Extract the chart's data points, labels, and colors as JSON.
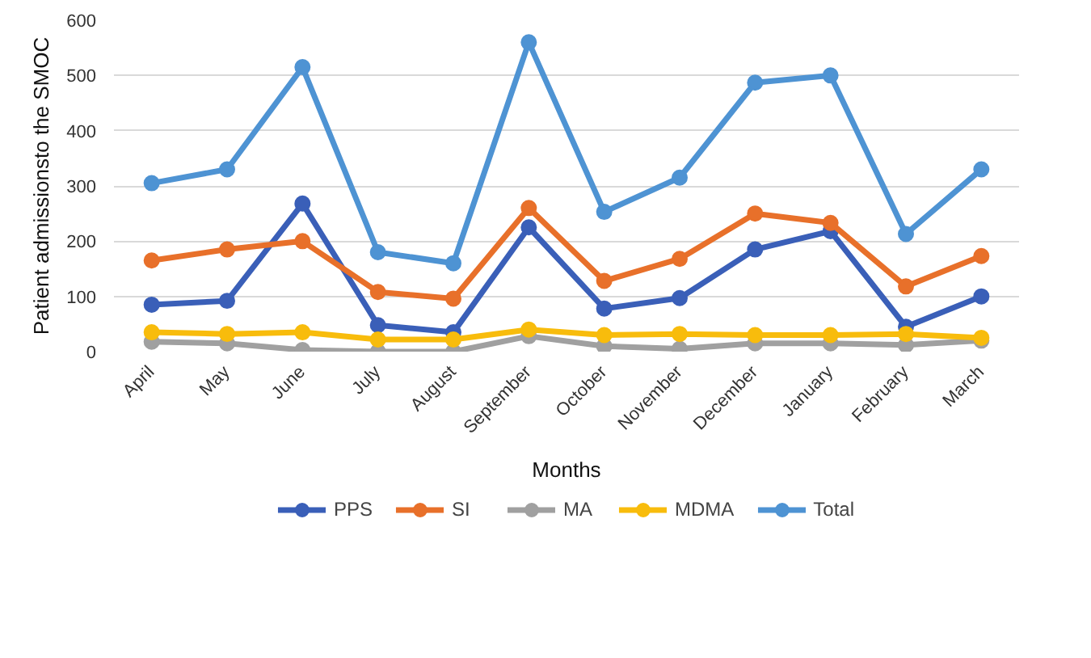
{
  "chart_data": {
    "type": "line",
    "xlabel": "Months",
    "ylabel": "Patient admissionsto the SMOC",
    "categories": [
      "April",
      "May",
      "June",
      "July",
      "August",
      "September",
      "October",
      "November",
      "December",
      "January",
      "February",
      "March"
    ],
    "series": [
      {
        "name": "PPS",
        "color": "#3a5fb8",
        "values": [
          85,
          92,
          268,
          48,
          35,
          225,
          78,
          97,
          185,
          218,
          45,
          100
        ]
      },
      {
        "name": "SI",
        "color": "#e8702a",
        "values": [
          165,
          185,
          200,
          108,
          96,
          260,
          128,
          168,
          250,
          233,
          118,
          173
        ]
      },
      {
        "name": "MA",
        "color": "#a0a0a0",
        "values": [
          18,
          15,
          3,
          0,
          0,
          28,
          10,
          5,
          15,
          15,
          12,
          20
        ]
      },
      {
        "name": "MDMA",
        "color": "#f8bc0c",
        "values": [
          35,
          32,
          35,
          22,
          22,
          40,
          30,
          32,
          30,
          30,
          32,
          25
        ]
      },
      {
        "name": "Total",
        "color": "#4e93d3",
        "values": [
          305,
          330,
          515,
          180,
          160,
          560,
          253,
          315,
          487,
          500,
          213,
          330
        ]
      }
    ],
    "ylim": [
      0,
      600
    ],
    "yticks": [
      0,
      100,
      200,
      300,
      400,
      500,
      600
    ],
    "grid": "y",
    "legend": "bottom",
    "marker": "circle",
    "line_style": "solid"
  }
}
